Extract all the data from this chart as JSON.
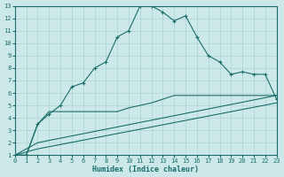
{
  "xlabel": "Humidex (Indice chaleur)",
  "xlim": [
    0,
    23
  ],
  "ylim": [
    1,
    13
  ],
  "xticks": [
    0,
    1,
    2,
    3,
    4,
    5,
    6,
    7,
    8,
    9,
    10,
    11,
    12,
    13,
    14,
    15,
    16,
    17,
    18,
    19,
    20,
    21,
    22,
    23
  ],
  "yticks": [
    1,
    2,
    3,
    4,
    5,
    6,
    7,
    8,
    9,
    10,
    11,
    12,
    13
  ],
  "bg_color": "#cce8e8",
  "line_color": "#1a6e6a",
  "grid_color": "#aad4d4",
  "series": [
    {
      "x": [
        0,
        1,
        2,
        3,
        4,
        5,
        6,
        7,
        8,
        9,
        10,
        11,
        12,
        13,
        14,
        15,
        16,
        17,
        18,
        19,
        20,
        21,
        22,
        23
      ],
      "y": [
        1.0,
        1.0,
        3.5,
        4.3,
        5.0,
        6.5,
        6.8,
        8.0,
        8.5,
        10.5,
        11.0,
        13.0,
        13.0,
        12.5,
        11.8,
        12.2,
        10.5,
        9.0,
        8.5,
        7.5,
        7.7,
        7.5,
        7.5,
        5.5
      ],
      "marker": "+"
    },
    {
      "x": [
        0,
        1,
        2,
        3,
        4,
        5,
        6,
        7,
        8,
        9,
        10,
        11,
        12,
        13,
        14,
        15,
        16,
        17,
        18,
        19,
        20,
        21,
        22,
        23
      ],
      "y": [
        1.0,
        1.0,
        3.5,
        4.5,
        4.5,
        4.5,
        4.5,
        4.5,
        4.5,
        4.5,
        4.8,
        5.0,
        5.2,
        5.5,
        5.8,
        5.8,
        5.8,
        5.8,
        5.8,
        5.8,
        5.8,
        5.8,
        5.8,
        5.8
      ],
      "marker": null
    },
    {
      "x": [
        0,
        2,
        23
      ],
      "y": [
        1.0,
        2.0,
        5.8
      ],
      "marker": null
    },
    {
      "x": [
        0,
        2,
        23
      ],
      "y": [
        1.0,
        1.5,
        5.2
      ],
      "marker": null
    }
  ]
}
